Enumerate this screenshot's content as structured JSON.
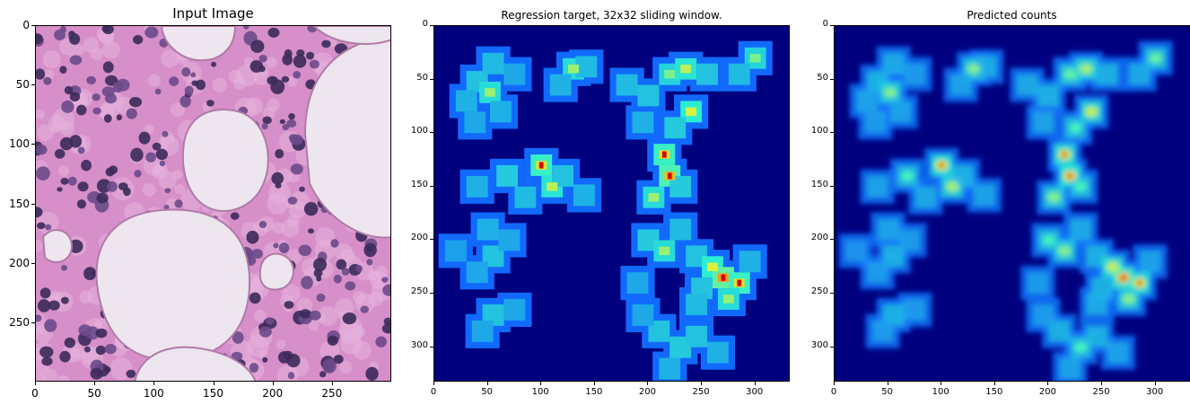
{
  "panels": [
    {
      "title": "Input Image",
      "x_ticks": [
        "0",
        "50",
        "100",
        "150",
        "200",
        "250"
      ],
      "y_ticks": [
        "0",
        "50",
        "100",
        "150",
        "200",
        "250"
      ]
    },
    {
      "title": "Regression target, 32x32 sliding window.",
      "x_ticks": [
        "0",
        "50",
        "100",
        "150",
        "200",
        "250",
        "300"
      ],
      "y_ticks": [
        "0",
        "50",
        "100",
        "150",
        "200",
        "250",
        "300"
      ]
    },
    {
      "title": "Predicted counts",
      "x_ticks": [
        "0",
        "50",
        "100",
        "150",
        "200",
        "250",
        "300"
      ],
      "y_ticks": [
        "0",
        "50",
        "100",
        "150",
        "200",
        "250",
        "300"
      ]
    }
  ],
  "colors": {
    "tissue_background": "#d68fc8",
    "cell_nucleus": "#3b2a5a",
    "lumen": "#ede6ee",
    "heatmap_low": "#00007f",
    "heatmap_mid_blue": "#1064ff",
    "heatmap_cyan": "#2cf0d0",
    "heatmap_yellow": "#e8f030",
    "heatmap_orange": "#ff7a10",
    "heatmap_high": "#cc0a00"
  }
}
